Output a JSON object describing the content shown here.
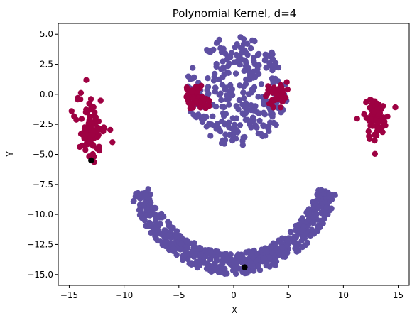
{
  "chart_data": {
    "type": "scatter",
    "title": "Polynomial Kernel, d=4",
    "xlabel": "X",
    "ylabel": "Y",
    "xlim": [
      -16,
      16
    ],
    "ylim": [
      -15.9,
      5.9
    ],
    "xticks": [
      -15,
      -10,
      -5,
      0,
      5,
      10,
      15
    ],
    "xtick_labels": [
      "−15",
      "−10",
      "−5",
      "0",
      "5",
      "10",
      "15"
    ],
    "yticks": [
      5.0,
      2.5,
      0.0,
      -2.5,
      -5.0,
      -7.5,
      -10.0,
      -12.5,
      -15.0
    ],
    "ytick_labels": [
      "5.0",
      "2.5",
      "0.0",
      "−2.5",
      "−5.0",
      "−7.5",
      "−10.0",
      "−12.5",
      "−15.0"
    ],
    "grid": false,
    "legend": "none",
    "colors": {
      "class_purple": "#5e4fa2",
      "class_red": "#9e0142",
      "centers": "#000000"
    },
    "series": [
      {
        "color": "#5e4fa2",
        "clusters": [
          {
            "shape": "arc",
            "center": [
              0,
              -5
            ],
            "r_min": 8.2,
            "r_max": 10.0,
            "theta_deg": [
              200,
              340
            ],
            "count": 560
          },
          {
            "shape": "disc",
            "center": [
              0.3,
              0.3
            ],
            "r_max": 4.6,
            "count": 300
          }
        ]
      },
      {
        "color": "#9e0142",
        "clusters": [
          {
            "shape": "blob",
            "center": [
              -13.0,
              -2.8
            ],
            "spread": [
              1.1,
              2.2
            ],
            "count": 90
          },
          {
            "shape": "blob",
            "center": [
              13.0,
              -2.0
            ],
            "spread": [
              1.0,
              1.5
            ],
            "count": 70
          },
          {
            "shape": "blob",
            "center": [
              -3.5,
              -0.2
            ],
            "spread": [
              1.0,
              0.8
            ],
            "count": 40
          },
          {
            "shape": "blob",
            "center": [
              4.0,
              -0.2
            ],
            "spread": [
              1.0,
              0.8
            ],
            "count": 35
          }
        ]
      },
      {
        "color": "#000000",
        "points": [
          [
            -13.0,
            -5.5
          ],
          [
            1.0,
            -14.4
          ]
        ]
      }
    ]
  }
}
